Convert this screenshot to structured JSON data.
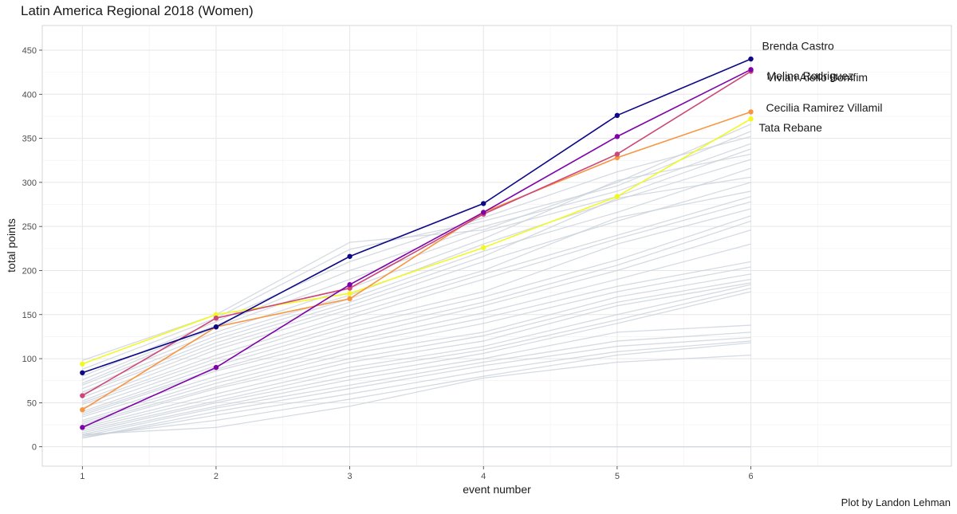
{
  "title": "Latin America Regional 2018 (Women)",
  "caption": "Plot by Landon Lehman",
  "chart_data": {
    "type": "line",
    "title": "Latin America Regional 2018 (Women)",
    "xlabel": "event number",
    "ylabel": "total points",
    "x": [
      1,
      2,
      3,
      4,
      5,
      6
    ],
    "xlim": [
      0.7,
      7.5
    ],
    "ylim": [
      -22,
      478
    ],
    "x_ticks": [
      1,
      2,
      3,
      4,
      5,
      6
    ],
    "y_ticks": [
      0,
      50,
      100,
      150,
      200,
      250,
      300,
      350,
      400,
      450
    ],
    "grid": true,
    "background_color": "#c7cfd8",
    "highlighted": [
      {
        "name": "Brenda Castro",
        "color": "#0d0887",
        "values": [
          84,
          136,
          216,
          276,
          376,
          440
        ]
      },
      {
        "name": "Melina Rodriguez",
        "color": "#7e03a8",
        "values": [
          22,
          90,
          184,
          266,
          352,
          428
        ]
      },
      {
        "name": "Vivian Aiello Bomfim",
        "color": "#cc4778",
        "values": [
          58,
          146,
          180,
          264,
          332,
          426
        ]
      },
      {
        "name": "Cecilia Ramirez Villamil",
        "color": "#f89540",
        "values": [
          42,
          136,
          168,
          266,
          328,
          380
        ]
      },
      {
        "name": "Tata Rebane",
        "color": "#f0f921",
        "values": [
          94,
          150,
          174,
          226,
          284,
          372
        ]
      }
    ],
    "background_series": [
      [
        98,
        150,
        232,
        246,
        300,
        366
      ],
      [
        88,
        146,
        224,
        256,
        296,
        358
      ],
      [
        80,
        142,
        210,
        260,
        312,
        352
      ],
      [
        76,
        138,
        200,
        250,
        290,
        344
      ],
      [
        72,
        136,
        190,
        244,
        284,
        338
      ],
      [
        70,
        130,
        180,
        236,
        302,
        332
      ],
      [
        66,
        126,
        172,
        230,
        280,
        326
      ],
      [
        62,
        122,
        168,
        222,
        266,
        316
      ],
      [
        60,
        118,
        164,
        216,
        282,
        306
      ],
      [
        56,
        114,
        160,
        210,
        256,
        300
      ],
      [
        52,
        110,
        156,
        200,
        260,
        290
      ],
      [
        50,
        104,
        150,
        196,
        240,
        284
      ],
      [
        48,
        100,
        146,
        190,
        236,
        278
      ],
      [
        44,
        96,
        140,
        176,
        230,
        270
      ],
      [
        40,
        92,
        136,
        170,
        212,
        262
      ],
      [
        38,
        88,
        130,
        164,
        206,
        256
      ],
      [
        36,
        86,
        124,
        160,
        200,
        246
      ],
      [
        34,
        80,
        120,
        152,
        190,
        230
      ],
      [
        30,
        76,
        116,
        146,
        182,
        210
      ],
      [
        28,
        72,
        110,
        140,
        176,
        204
      ],
      [
        26,
        68,
        106,
        130,
        170,
        196
      ],
      [
        24,
        66,
        100,
        126,
        164,
        190
      ],
      [
        22,
        60,
        96,
        120,
        160,
        186
      ],
      [
        20,
        56,
        90,
        114,
        150,
        184
      ],
      [
        18,
        52,
        86,
        110,
        144,
        180
      ],
      [
        16,
        50,
        80,
        106,
        140,
        176
      ],
      [
        14,
        46,
        76,
        100,
        130,
        138
      ],
      [
        12,
        44,
        70,
        96,
        120,
        130
      ],
      [
        10,
        40,
        66,
        92,
        114,
        124
      ],
      [
        10,
        36,
        60,
        86,
        108,
        120
      ],
      [
        12,
        30,
        54,
        80,
        104,
        118
      ],
      [
        14,
        22,
        46,
        78,
        96,
        104
      ],
      [
        0,
        0,
        0,
        0,
        0,
        0
      ]
    ]
  }
}
